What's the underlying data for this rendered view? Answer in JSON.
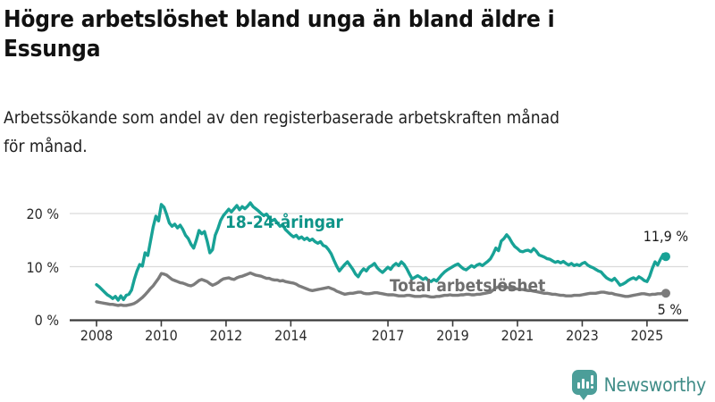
{
  "header": {
    "title_lines": [
      "Högre arbetslöshet bland unga än bland äldre i",
      "Essunga"
    ],
    "subtitle_lines": [
      "Arbetssökande som andel av den registerbaserade arbetskraften månad",
      "för månad."
    ]
  },
  "footer": {
    "brand": "Newsworthy",
    "icon": "bar-chart-speech-bubble"
  },
  "colors": {
    "youth_line": "#18a296",
    "youth_label": "#0e9488",
    "total_line": "#7c7c7c",
    "total_label": "#6e6e6e",
    "axis": "#3a3a3a",
    "grid": "#dadada",
    "logo": "#4c9e99"
  },
  "chart_data": {
    "type": "line",
    "title": "Högre arbetslöshet bland unga än bland äldre i Essunga",
    "subtitle": "Arbetssökande som andel av den registerbaserade arbetskraften månad för månad.",
    "x_start": "2008-01",
    "x_end": "2025-08",
    "interval": "month",
    "x_tick_years": [
      2008,
      2010,
      2012,
      2014,
      2017,
      2019,
      2021,
      2023,
      2025
    ],
    "x_tick_labels": [
      "2008",
      "2010",
      "2012",
      "2014",
      "2017",
      "2019",
      "2021",
      "2023",
      "2025"
    ],
    "y_tick_labels": [
      "0 %",
      "10 %",
      "20 %"
    ],
    "y_gridlines": [
      10,
      20
    ],
    "ylim": [
      0,
      22.5
    ],
    "grid": true,
    "legend_position": "inline-labels",
    "series": [
      {
        "name": "18-24-åringar",
        "color": "#18a296",
        "end_label": "11,9 %",
        "end_value": 11.9,
        "values": [
          6.6,
          6.2,
          5.7,
          5.2,
          4.7,
          4.4,
          4.0,
          4.4,
          3.7,
          4.5,
          3.8,
          4.6,
          4.8,
          5.6,
          7.6,
          9.2,
          10.4,
          10.1,
          12.6,
          12.1,
          14.8,
          17.5,
          19.5,
          18.6,
          21.7,
          21.2,
          19.8,
          18.2,
          17.6,
          18.0,
          17.3,
          17.8,
          17.0,
          15.9,
          15.3,
          14.2,
          13.5,
          15.0,
          16.8,
          16.2,
          16.6,
          14.8,
          12.6,
          13.2,
          15.9,
          17.2,
          18.7,
          19.6,
          20.2,
          20.8,
          20.3,
          20.9,
          21.5,
          20.7,
          21.3,
          20.9,
          21.4,
          22.0,
          21.3,
          20.9,
          20.5,
          20.0,
          19.6,
          19.9,
          19.2,
          18.6,
          18.9,
          18.2,
          17.6,
          17.9,
          17.0,
          16.5,
          16.0,
          15.6,
          15.9,
          15.3,
          15.6,
          15.1,
          15.4,
          14.9,
          15.2,
          14.7,
          14.4,
          14.7,
          14.0,
          13.8,
          13.2,
          12.4,
          11.2,
          10.1,
          9.2,
          9.8,
          10.4,
          10.9,
          10.2,
          9.5,
          8.6,
          8.1,
          9.0,
          9.6,
          9.2,
          9.9,
          10.2,
          10.6,
          9.8,
          9.3,
          8.9,
          9.4,
          9.9,
          9.5,
          10.2,
          10.6,
          10.2,
          10.9,
          10.4,
          9.6,
          8.6,
          7.7,
          8.0,
          8.3,
          8.0,
          7.6,
          7.9,
          7.4,
          7.2,
          7.6,
          7.3,
          7.9,
          8.5,
          9.0,
          9.4,
          9.7,
          10.0,
          10.3,
          10.5,
          10.0,
          9.6,
          9.4,
          9.8,
          10.2,
          9.9,
          10.3,
          10.5,
          10.2,
          10.6,
          11.0,
          11.5,
          12.4,
          13.5,
          13.0,
          14.8,
          15.3,
          16.0,
          15.4,
          14.5,
          13.8,
          13.4,
          12.9,
          12.8,
          13.0,
          13.1,
          12.8,
          13.4,
          12.9,
          12.2,
          12.0,
          11.8,
          11.5,
          11.4,
          11.1,
          10.8,
          11.0,
          10.7,
          11.0,
          10.6,
          10.3,
          10.6,
          10.2,
          10.4,
          10.2,
          10.6,
          10.8,
          10.3,
          10.0,
          9.8,
          9.5,
          9.2,
          9.0,
          8.4,
          7.9,
          7.6,
          7.4,
          7.8,
          7.2,
          6.5,
          6.7,
          7.0,
          7.4,
          7.7,
          7.9,
          7.6,
          8.1,
          7.8,
          7.4,
          7.2,
          8.2,
          9.7,
          10.9,
          10.3,
          11.4,
          12.3,
          11.9
        ]
      },
      {
        "name": "Total arbetslöshet",
        "color": "#7c7c7c",
        "end_label": "5 %",
        "end_value": 5.0,
        "values": [
          3.4,
          3.3,
          3.2,
          3.1,
          3.0,
          2.9,
          2.9,
          2.8,
          2.7,
          2.8,
          2.7,
          2.7,
          2.8,
          2.9,
          3.1,
          3.4,
          3.8,
          4.2,
          4.7,
          5.3,
          5.9,
          6.4,
          7.1,
          7.8,
          8.7,
          8.6,
          8.4,
          8.0,
          7.6,
          7.4,
          7.2,
          7.0,
          6.9,
          6.7,
          6.5,
          6.4,
          6.6,
          7.0,
          7.4,
          7.6,
          7.4,
          7.2,
          6.8,
          6.5,
          6.7,
          7.0,
          7.4,
          7.7,
          7.8,
          7.9,
          7.7,
          7.6,
          7.9,
          8.1,
          8.2,
          8.4,
          8.6,
          8.8,
          8.6,
          8.4,
          8.3,
          8.2,
          8.0,
          7.8,
          7.8,
          7.6,
          7.5,
          7.5,
          7.3,
          7.4,
          7.2,
          7.1,
          7.0,
          6.9,
          6.7,
          6.4,
          6.2,
          6.0,
          5.8,
          5.6,
          5.5,
          5.6,
          5.7,
          5.8,
          5.9,
          6.0,
          6.1,
          5.9,
          5.7,
          5.4,
          5.2,
          5.0,
          4.8,
          4.9,
          5.0,
          5.0,
          5.1,
          5.2,
          5.2,
          5.0,
          4.9,
          4.9,
          5.0,
          5.1,
          5.1,
          5.0,
          4.9,
          4.8,
          4.7,
          4.7,
          4.7,
          4.6,
          4.5,
          4.5,
          4.5,
          4.6,
          4.6,
          4.5,
          4.4,
          4.4,
          4.4,
          4.5,
          4.5,
          4.4,
          4.3,
          4.3,
          4.4,
          4.4,
          4.5,
          4.6,
          4.6,
          4.7,
          4.6,
          4.6,
          4.6,
          4.7,
          4.7,
          4.8,
          4.8,
          4.7,
          4.7,
          4.8,
          4.8,
          4.9,
          5.0,
          5.1,
          5.2,
          5.6,
          6.0,
          6.2,
          6.3,
          6.2,
          6.1,
          6.0,
          5.9,
          5.9,
          5.8,
          5.7,
          5.7,
          5.6,
          5.5,
          5.5,
          5.4,
          5.3,
          5.2,
          5.1,
          5.0,
          5.0,
          4.9,
          4.8,
          4.8,
          4.7,
          4.6,
          4.6,
          4.5,
          4.5,
          4.5,
          4.6,
          4.6,
          4.6,
          4.7,
          4.8,
          4.9,
          5.0,
          5.0,
          5.0,
          5.1,
          5.2,
          5.2,
          5.1,
          5.0,
          5.0,
          4.8,
          4.7,
          4.6,
          4.5,
          4.4,
          4.4,
          4.5,
          4.6,
          4.7,
          4.8,
          4.9,
          4.9,
          4.8,
          4.7,
          4.8,
          4.8,
          4.9,
          4.9,
          5.0,
          5.0
        ]
      }
    ]
  }
}
